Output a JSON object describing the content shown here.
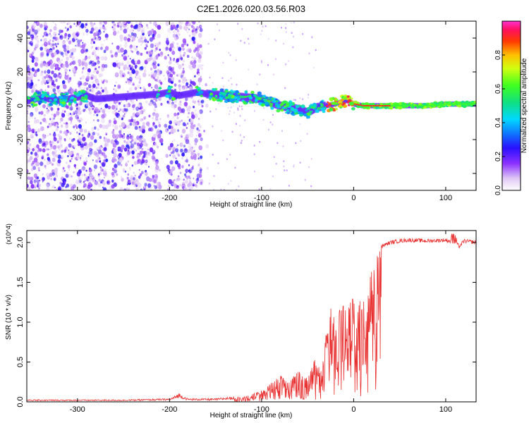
{
  "page_title": "C2E1.2026.020.03.56.R03",
  "chart_data": [
    {
      "type": "heatmap",
      "title": "C2E1.2026.020.03.56.R03",
      "xlabel": "Height of straight line (km)",
      "ylabel": "Frequency (Hz)",
      "xlim": [
        -355,
        133
      ],
      "ylim": [
        -50,
        50
      ],
      "x_ticks": [
        -300,
        -200,
        -100,
        0,
        100
      ],
      "y_ticks": [
        -40,
        -20,
        0,
        20,
        40
      ],
      "colorbar": {
        "label": "Normalized spectral amplitude",
        "range": [
          0,
          1
        ],
        "ticks": [
          0.0,
          0.2,
          0.4,
          0.6,
          0.8
        ]
      },
      "ridge": {
        "x": [
          -350,
          -340,
          -330,
          -320,
          -300,
          -290,
          -280,
          -210,
          -200,
          -190,
          -170,
          -160,
          -140,
          -120,
          -100,
          -90,
          -80,
          -70,
          -60,
          -50,
          -40,
          -30,
          -20,
          -15,
          -10,
          -5,
          0,
          10,
          20,
          40,
          60,
          80,
          100,
          120,
          133
        ],
        "frequency": [
          3,
          5,
          4,
          3,
          5,
          6,
          4,
          7,
          8,
          6,
          8,
          7,
          6,
          5,
          4,
          2,
          0,
          -1,
          -2,
          -4,
          -1,
          0,
          1,
          2,
          3,
          3,
          1,
          0,
          0,
          0,
          0,
          0,
          1,
          1,
          1
        ]
      }
    },
    {
      "type": "line",
      "title": "",
      "xlabel": "Height of straight line (km)",
      "ylabel": "SNR (10 * v/v)",
      "y_multiplier": "(x10^4)",
      "xlim": [
        -355,
        133
      ],
      "ylim": [
        0,
        2.15
      ],
      "x_ticks": [
        -300,
        -200,
        -100,
        0,
        100
      ],
      "y_ticks": [
        0.0,
        0.5,
        1.0,
        1.5,
        2.0
      ],
      "series": [
        {
          "name": "SNR",
          "color": "#e83030",
          "x": [
            -355,
            -300,
            -250,
            -200,
            -195,
            -190,
            -180,
            -150,
            -130,
            -120,
            -110,
            -100,
            -90,
            -80,
            -70,
            -60,
            -50,
            -45,
            -40,
            -35,
            -30,
            -25,
            -20,
            -15,
            -10,
            -5,
            0,
            5,
            10,
            15,
            20,
            30,
            40,
            50,
            60,
            80,
            100,
            110,
            115,
            120,
            133
          ],
          "values": [
            0.02,
            0.02,
            0.02,
            0.03,
            0.05,
            0.08,
            0.03,
            0.03,
            0.05,
            0.07,
            0.1,
            0.15,
            0.25,
            0.35,
            0.25,
            0.4,
            0.3,
            0.5,
            0.55,
            0.4,
            0.9,
            1.2,
            1.1,
            1.3,
            1.2,
            1.4,
            1.5,
            1.3,
            1.5,
            1.7,
            1.85,
            1.95,
            2.0,
            2.02,
            2.03,
            2.02,
            2.03,
            2.0,
            1.95,
            2.02,
            2.0
          ]
        }
      ]
    }
  ]
}
